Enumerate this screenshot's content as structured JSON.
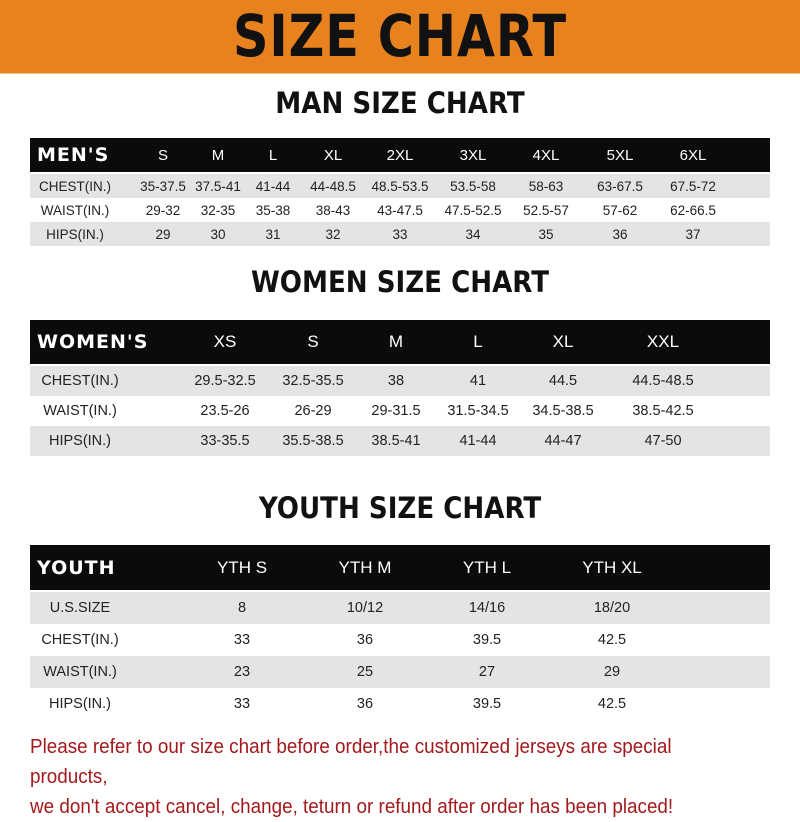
{
  "banner": {
    "title": "SIZE CHART",
    "color": "#e8821e"
  },
  "men": {
    "title": "MAN SIZE CHART",
    "header": [
      "MEN'S",
      "S",
      "M",
      "L",
      "XL",
      "2XL",
      "3XL",
      "4XL",
      "5XL",
      "6XL"
    ],
    "rows": [
      [
        "CHEST(IN.)",
        "35-37.5",
        "37.5-41",
        "41-44",
        "44-48.5",
        "48.5-53.5",
        "53.5-58",
        "58-63",
        "63-67.5",
        "67.5-72"
      ],
      [
        "WAIST(IN.)",
        "29-32",
        "32-35",
        "35-38",
        "38-43",
        "43-47.5",
        "47.5-52.5",
        "52.5-57",
        "57-62",
        "62-66.5"
      ],
      [
        "HIPS(IN.)",
        "29",
        "30",
        "31",
        "32",
        "33",
        "34",
        "35",
        "36",
        "37"
      ]
    ]
  },
  "women": {
    "title": "WOMEN SIZE CHART",
    "header": [
      "WOMEN'S",
      "XS",
      "S",
      "M",
      "L",
      "XL",
      "XXL"
    ],
    "rows": [
      [
        "CHEST(IN.)",
        "29.5-32.5",
        "32.5-35.5",
        "38",
        "41",
        "44.5",
        "44.5-48.5"
      ],
      [
        "WAIST(IN.)",
        "23.5-26",
        "26-29",
        "29-31.5",
        "31.5-34.5",
        "34.5-38.5",
        "38.5-42.5"
      ],
      [
        "HIPS(IN.)",
        "33-35.5",
        "35.5-38.5",
        "38.5-41",
        "41-44",
        "44-47",
        "47-50"
      ]
    ]
  },
  "youth": {
    "title": "YOUTH SIZE CHART",
    "header": [
      "YOUTH",
      "YTH S",
      "YTH M",
      "YTH L",
      "YTH XL"
    ],
    "rows": [
      [
        "U.S.SIZE",
        "8",
        "10/12",
        "14/16",
        "18/20"
      ],
      [
        "CHEST(IN.)",
        "33",
        "36",
        "39.5",
        "42.5"
      ],
      [
        "WAIST(IN.)",
        "23",
        "25",
        "27",
        "29"
      ],
      [
        "HIPS(IN.)",
        "33",
        "36",
        "39.5",
        "42.5"
      ]
    ]
  },
  "footer": {
    "line1": "Please refer to our size chart before order,the customized jerseys are special products,",
    "line2": "we don't accept cancel, change, teturn or refund after order has been placed!",
    "color": "#a3191c"
  }
}
